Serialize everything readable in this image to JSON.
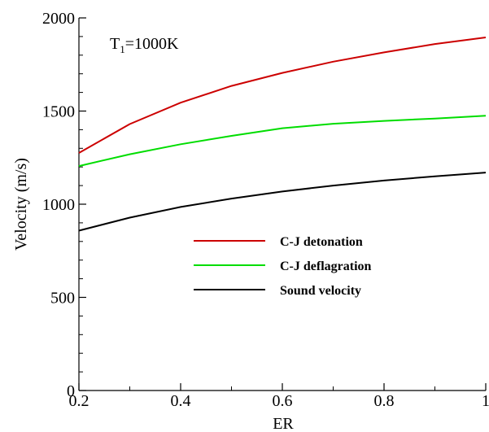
{
  "chart_data": {
    "type": "line",
    "xlabel": "ER",
    "ylabel": "Velocity (m/s)",
    "xlim": [
      0.2,
      1.0
    ],
    "ylim": [
      0,
      2000
    ],
    "x_ticks": [
      "0.2",
      "0.4",
      "0.6",
      "0.8",
      "1"
    ],
    "y_ticks": [
      "0",
      "500",
      "1000",
      "1500",
      "2000"
    ],
    "grid": false,
    "legend_position": "center-right",
    "annotation": {
      "main": "T",
      "sub": "1",
      "rest": "=1000K"
    },
    "x": [
      0.2,
      0.3,
      0.4,
      0.5,
      0.6,
      0.7,
      0.8,
      0.9,
      1.0
    ],
    "series": [
      {
        "name": "C-J detonation",
        "color": "#cc0000",
        "values": [
          1275,
          1430,
          1545,
          1635,
          1705,
          1765,
          1815,
          1860,
          1895
        ]
      },
      {
        "name": "C-J deflagration",
        "color": "#00dd00",
        "values": [
          1205,
          1268,
          1322,
          1367,
          1408,
          1432,
          1447,
          1460,
          1475
        ]
      },
      {
        "name": "Sound velocity",
        "color": "#000000",
        "values": [
          858,
          928,
          985,
          1030,
          1068,
          1100,
          1127,
          1150,
          1170
        ]
      }
    ]
  }
}
